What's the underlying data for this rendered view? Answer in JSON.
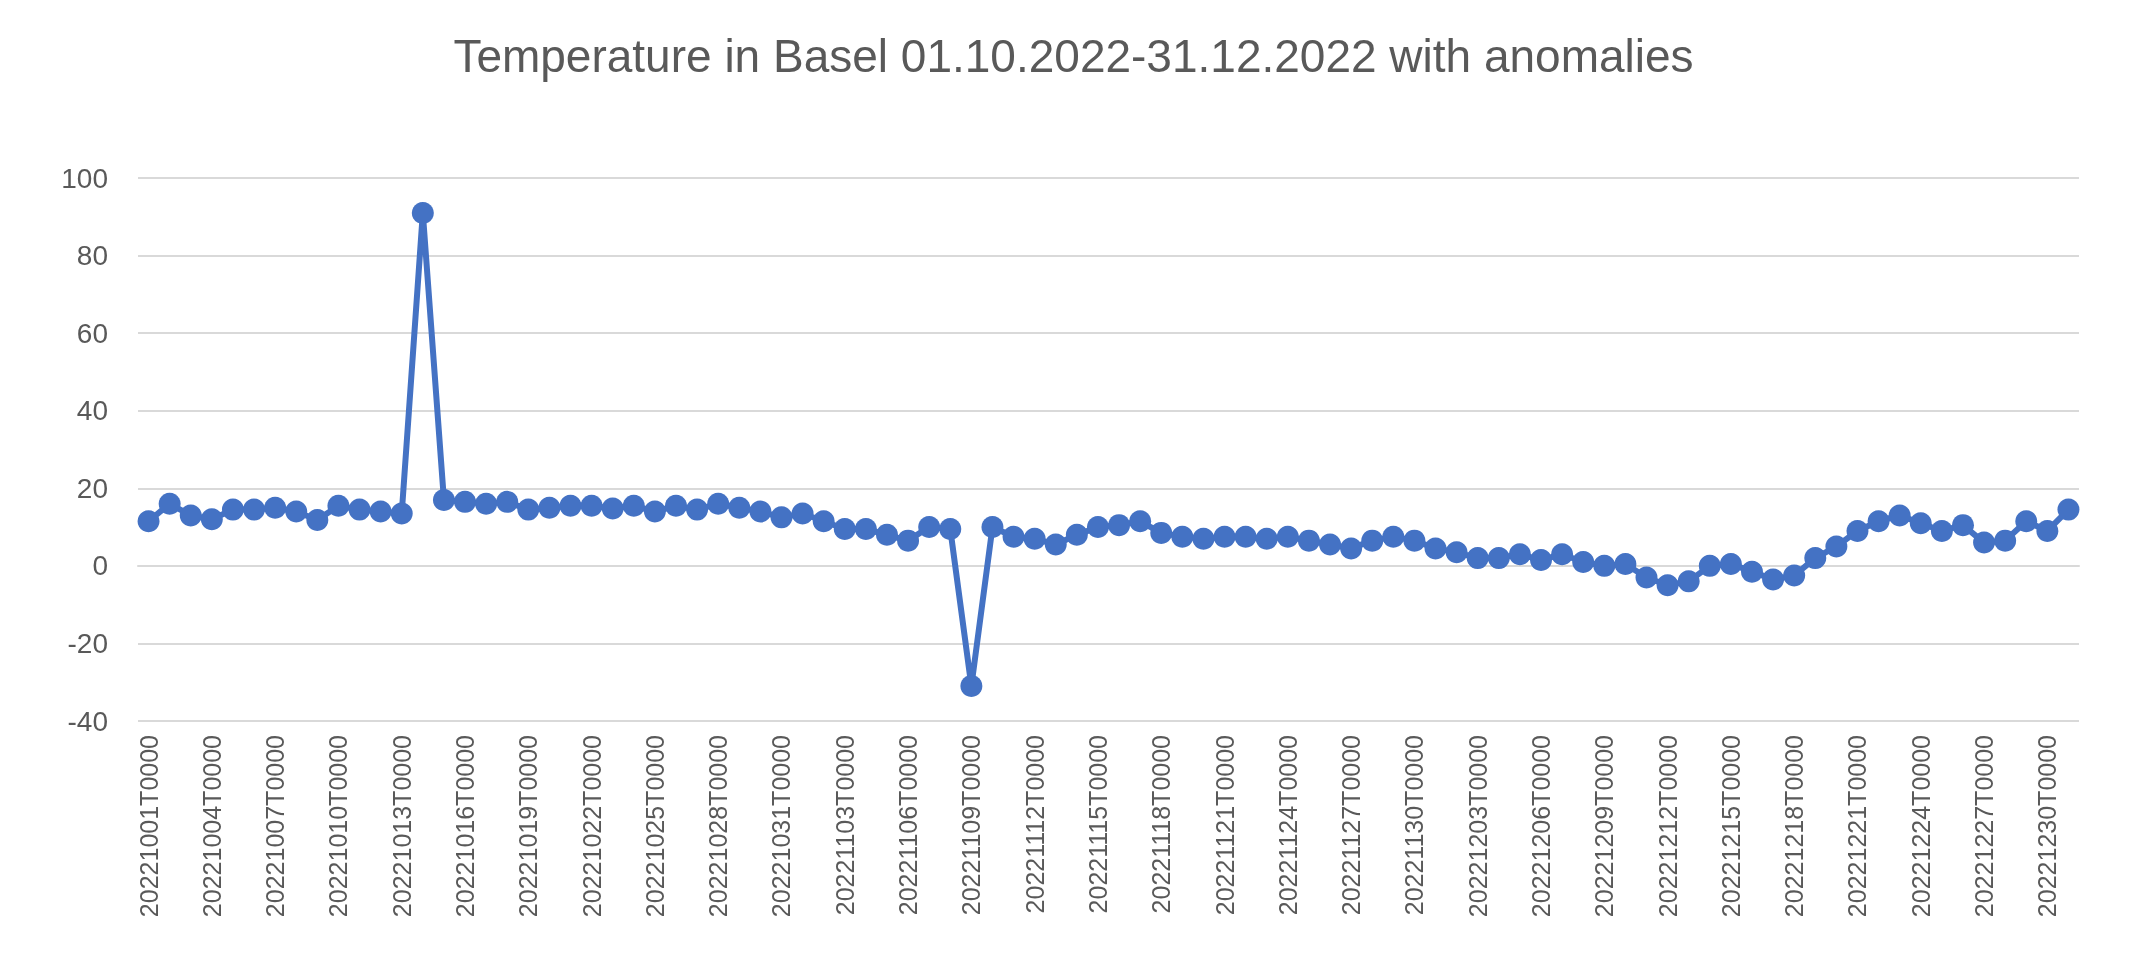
{
  "chart_data": {
    "type": "line",
    "title": "Temperature in Basel 01.10.2022-31.12.2022 with anomalies",
    "categories": [
      "20221001T0000",
      null,
      null,
      "20221004T0000",
      null,
      null,
      "20221007T0000",
      null,
      null,
      "20221010T0000",
      null,
      null,
      "20221013T0000",
      null,
      null,
      "20221016T0000",
      null,
      null,
      "20221019T0000",
      null,
      null,
      "20221022T0000",
      null,
      null,
      "20221025T0000",
      null,
      null,
      "20221028T0000",
      null,
      null,
      "20221031T0000",
      null,
      null,
      "20221103T0000",
      null,
      null,
      "20221106T0000",
      null,
      null,
      "20221109T0000",
      null,
      null,
      "20221112T0000",
      null,
      null,
      "20221115T0000",
      null,
      null,
      "20221118T0000",
      null,
      null,
      "20221121T0000",
      null,
      null,
      "20221124T0000",
      null,
      null,
      "20221127T0000",
      null,
      null,
      "20221130T0000",
      null,
      null,
      "20221203T0000",
      null,
      null,
      "20221206T0000",
      null,
      null,
      "20221209T0000",
      null,
      null,
      "20221212T0000",
      null,
      null,
      "20221215T0000",
      null,
      null,
      "20221218T0000",
      null,
      null,
      "20221221T0000",
      null,
      null,
      "20221224T0000",
      null,
      null,
      "20221227T0000",
      null,
      null,
      "20221230T0000",
      null
    ],
    "series": [
      {
        "color": "#4472c4",
        "values": [
          11.5,
          16,
          13,
          12,
          14.5,
          14.5,
          15,
          14,
          11.8,
          15.5,
          14.5,
          14,
          13.5,
          91,
          17,
          16.5,
          16,
          16.5,
          14.5,
          15,
          15.5,
          15.5,
          14.8,
          15.5,
          14,
          15.5,
          14.5,
          16,
          15,
          14,
          12.5,
          13.5,
          11.5,
          9.5,
          9.5,
          8,
          6.5,
          10,
          9.5,
          -31,
          10,
          7.5,
          7,
          5.5,
          8,
          10,
          10.5,
          11.5,
          8.5,
          7.5,
          7,
          7.5,
          7.5,
          7,
          7.5,
          6.5,
          5.5,
          4.5,
          6.5,
          7.5,
          6.5,
          4.5,
          3.5,
          2,
          2,
          3,
          1.5,
          3,
          1,
          0,
          0.5,
          -3,
          -5,
          -4,
          0,
          0.5,
          -1.5,
          -3.5,
          -2.5,
          2,
          5,
          9,
          11.5,
          13,
          11,
          9,
          10.5,
          6,
          6.5,
          11.5,
          9,
          14.5
        ]
      }
    ],
    "ylim": [
      -40,
      100
    ],
    "yticks": [
      -40,
      -20,
      0,
      20,
      40,
      60,
      80,
      100
    ],
    "grid": "y",
    "marker": "circle",
    "line_style": "solid"
  }
}
